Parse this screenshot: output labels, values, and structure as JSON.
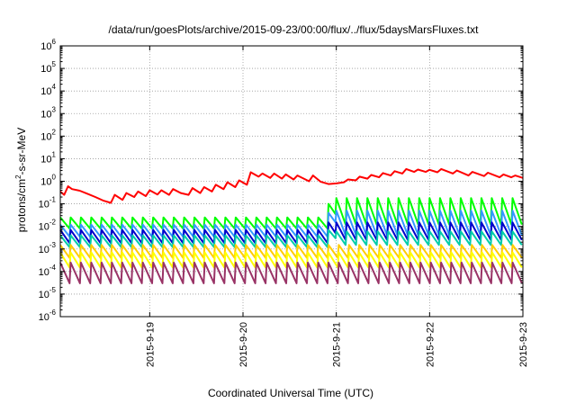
{
  "chart_data": {
    "type": "line",
    "title": "/data/run/goesPlots/archive/2015-09-23/00:00/flux/../flux/5daysMarsFluxes.txt",
    "xlabel": "Coordinated Universal Time (UTC)",
    "ylabel_parts": {
      "base": "protons/cm",
      "sup": "2",
      "rest": "-s-sr-MeV"
    },
    "y_scale": "log",
    "ylim": [
      1e-06,
      1000000.0
    ],
    "y_ticks": [
      {
        "value": -6,
        "base": "10",
        "exp": "-6"
      },
      {
        "value": -5,
        "base": "10",
        "exp": "-5"
      },
      {
        "value": -4,
        "base": "10",
        "exp": "-4"
      },
      {
        "value": -3,
        "base": "10",
        "exp": "-3"
      },
      {
        "value": -2,
        "base": "10",
        "exp": "-2"
      },
      {
        "value": -1,
        "base": "10",
        "exp": "-1"
      },
      {
        "value": 0,
        "base": "10",
        "exp": "0"
      },
      {
        "value": 1,
        "base": "10",
        "exp": "1"
      },
      {
        "value": 2,
        "base": "10",
        "exp": "2"
      },
      {
        "value": 3,
        "base": "10",
        "exp": "3"
      },
      {
        "value": 4,
        "base": "10",
        "exp": "4"
      },
      {
        "value": 5,
        "base": "10",
        "exp": "5"
      },
      {
        "value": 6,
        "base": "10",
        "exp": "6"
      }
    ],
    "xlim": [
      "2015-09-18 01:00",
      "2015-09-23 00:00"
    ],
    "x_ticks": [
      "2015-9-19",
      "2015-9-20",
      "2015-9-21",
      "2015-9-22",
      "2015-9-23"
    ],
    "grid": true,
    "legend": "none",
    "series": [
      {
        "color": "#ff0000",
        "points": [
          [
            "2015-09-18 01:00",
            0.35
          ],
          [
            "2015-09-18 02:00",
            0.25
          ],
          [
            "2015-09-18 03:00",
            0.6
          ],
          [
            "2015-09-18 04:00",
            0.45
          ],
          [
            "2015-09-18 06:00",
            0.38
          ],
          [
            "2015-09-18 08:00",
            0.28
          ],
          [
            "2015-09-18 10:00",
            0.2
          ],
          [
            "2015-09-18 12:00",
            0.14
          ],
          [
            "2015-09-18 14:00",
            0.11
          ],
          [
            "2015-09-18 15:00",
            0.25
          ],
          [
            "2015-09-18 17:00",
            0.15
          ],
          [
            "2015-09-18 18:00",
            0.3
          ],
          [
            "2015-09-18 20:00",
            0.2
          ],
          [
            "2015-09-18 21:00",
            0.35
          ],
          [
            "2015-09-18 23:00",
            0.22
          ],
          [
            "2015-09-19 00:00",
            0.4
          ],
          [
            "2015-09-19 02:00",
            0.26
          ],
          [
            "2015-09-19 03:00",
            0.4
          ],
          [
            "2015-09-19 05:00",
            0.25
          ],
          [
            "2015-09-19 06:00",
            0.45
          ],
          [
            "2015-09-19 08:00",
            0.3
          ],
          [
            "2015-09-19 10:00",
            0.25
          ],
          [
            "2015-09-19 11:00",
            0.5
          ],
          [
            "2015-09-19 13:00",
            0.3
          ],
          [
            "2015-09-19 14:00",
            0.55
          ],
          [
            "2015-09-19 16:00",
            0.35
          ],
          [
            "2015-09-19 17:00",
            0.7
          ],
          [
            "2015-09-19 19:00",
            0.45
          ],
          [
            "2015-09-19 20:00",
            0.9
          ],
          [
            "2015-09-19 22:00",
            0.55
          ],
          [
            "2015-09-19 23:00",
            1.1
          ],
          [
            "2015-09-20 01:00",
            0.7
          ],
          [
            "2015-09-20 02:00",
            2.5
          ],
          [
            "2015-09-20 04:00",
            1.6
          ],
          [
            "2015-09-20 05:00",
            2.2
          ],
          [
            "2015-09-20 07:00",
            1.4
          ],
          [
            "2015-09-20 08:00",
            2.2
          ],
          [
            "2015-09-20 10:00",
            1.3
          ],
          [
            "2015-09-20 11:00",
            2.0
          ],
          [
            "2015-09-20 13:00",
            1.2
          ],
          [
            "2015-09-20 14:00",
            1.8
          ],
          [
            "2015-09-20 17:00",
            1.0
          ],
          [
            "2015-09-20 18:00",
            1.8
          ],
          [
            "2015-09-20 20:00",
            0.95
          ],
          [
            "2015-09-20 22:00",
            0.75
          ],
          [
            "2015-09-21 00:00",
            0.8
          ],
          [
            "2015-09-21 02:00",
            0.9
          ],
          [
            "2015-09-21 03:00",
            1.2
          ],
          [
            "2015-09-21 05:00",
            1.1
          ],
          [
            "2015-09-21 06:00",
            1.6
          ],
          [
            "2015-09-21 08:00",
            1.3
          ],
          [
            "2015-09-21 09:00",
            1.9
          ],
          [
            "2015-09-21 11:00",
            1.5
          ],
          [
            "2015-09-21 12:00",
            2.3
          ],
          [
            "2015-09-21 14:00",
            1.8
          ],
          [
            "2015-09-21 15:00",
            2.8
          ],
          [
            "2015-09-21 17:00",
            2.2
          ],
          [
            "2015-09-21 18:00",
            3.5
          ],
          [
            "2015-09-21 20:00",
            2.6
          ],
          [
            "2015-09-21 21:00",
            3.3
          ],
          [
            "2015-09-21 23:00",
            2.6
          ],
          [
            "2015-09-22 00:00",
            3.2
          ],
          [
            "2015-09-22 02:00",
            2.5
          ],
          [
            "2015-09-22 03:00",
            3.5
          ],
          [
            "2015-09-22 06:00",
            2.2
          ],
          [
            "2015-09-22 07:00",
            3.0
          ],
          [
            "2015-09-22 10:00",
            1.8
          ],
          [
            "2015-09-22 11:00",
            2.6
          ],
          [
            "2015-09-22 14:00",
            1.7
          ],
          [
            "2015-09-22 15:00",
            2.4
          ],
          [
            "2015-09-22 18:00",
            1.5
          ],
          [
            "2015-09-22 19:00",
            2.0
          ],
          [
            "2015-09-22 21:00",
            1.5
          ],
          [
            "2015-09-22 22:00",
            1.8
          ],
          [
            "2015-09-23 00:00",
            1.4
          ]
        ]
      },
      {
        "color": "#00ff00",
        "teeth": [
          [
            "2015-09-18 01:00",
            "2015-09-20 22:00",
            0.025,
            0.008,
            9
          ],
          [
            "2015-09-20 22:00",
            "2015-09-21 00:00",
            0.1,
            0.035,
            1
          ],
          [
            "2015-09-21 00:00",
            "2015-09-23 00:00",
            0.18,
            0.012,
            9
          ]
        ]
      },
      {
        "color": "#3399ff",
        "teeth": [
          [
            "2015-09-18 01:00",
            "2015-09-20 22:00",
            0.012,
            0.0035,
            9
          ],
          [
            "2015-09-20 22:00",
            "2015-09-21 00:00",
            0.04,
            0.015,
            1
          ],
          [
            "2015-09-21 00:00",
            "2015-09-23 00:00",
            0.05,
            0.004,
            9
          ]
        ]
      },
      {
        "color": "#0000cc",
        "teeth": [
          [
            "2015-09-18 01:00",
            "2015-09-20 22:00",
            0.007,
            0.0018,
            9
          ],
          [
            "2015-09-20 22:00",
            "2015-09-21 00:00",
            0.015,
            0.005,
            1
          ],
          [
            "2015-09-21 00:00",
            "2015-09-23 00:00",
            0.015,
            0.0025,
            9
          ]
        ]
      },
      {
        "color": "#00ccaa",
        "teeth": [
          [
            "2015-09-18 01:00",
            "2015-09-20 22:00",
            0.004,
            0.0012,
            9
          ],
          [
            "2015-09-20 22:00",
            "2015-09-21 00:00",
            0.007,
            0.003,
            1
          ],
          [
            "2015-09-21 00:00",
            "2015-09-23 00:00",
            0.006,
            0.0015,
            9
          ]
        ]
      },
      {
        "color": "#ffcc00",
        "teeth": [
          [
            "2015-09-18 01:00",
            "2015-09-20 22:00",
            0.0015,
            0.0004,
            9
          ],
          [
            "2015-09-20 22:00",
            "2015-09-23 00:00",
            0.0015,
            0.0004,
            9
          ]
        ]
      },
      {
        "color": "#ffff00",
        "teeth": [
          [
            "2015-09-18 01:00",
            "2015-09-20 22:00",
            0.0007,
            0.00015,
            9
          ],
          [
            "2015-09-20 22:00",
            "2015-09-23 00:00",
            0.0007,
            0.00015,
            9
          ]
        ]
      },
      {
        "color": "#993366",
        "teeth": [
          [
            "2015-09-18 01:00",
            "2015-09-20 22:00",
            0.00025,
            3e-05,
            9
          ],
          [
            "2015-09-20 22:00",
            "2015-09-23 00:00",
            0.00025,
            3e-05,
            9
          ]
        ]
      }
    ]
  }
}
